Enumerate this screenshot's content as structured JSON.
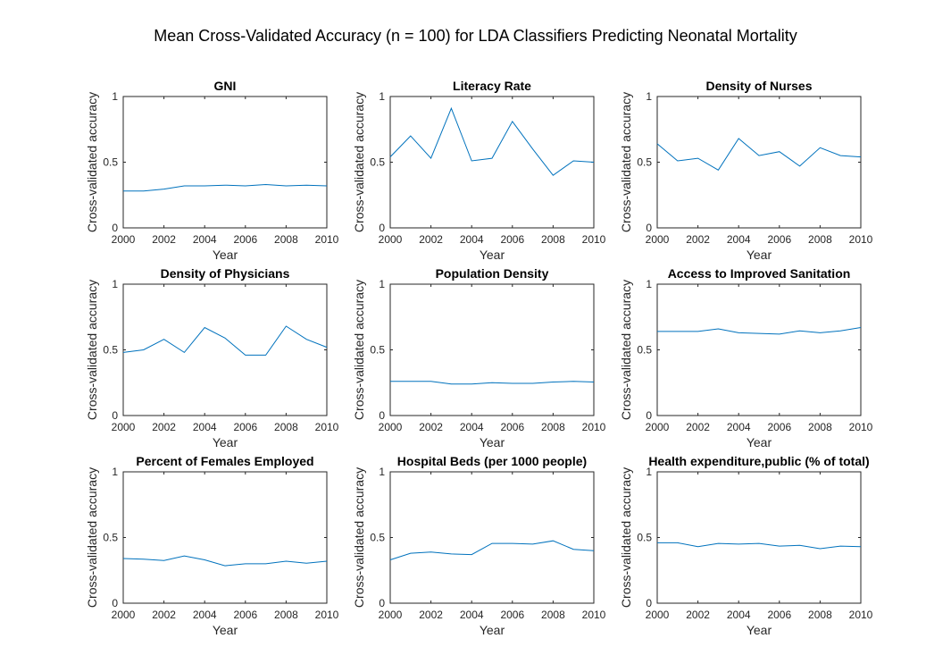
{
  "figure_title": "Mean Cross-Validated Accuracy (n = 100) for LDA Classifiers Predicting Neonatal Mortality",
  "colors": {
    "line": "#0072BD",
    "axis": "#262626",
    "background": "#ffffff"
  },
  "chart_data": [
    {
      "type": "line",
      "title": "GNI",
      "xlabel": "Year",
      "ylabel": "Cross-validated accuracy",
      "xlim": [
        2000,
        2010
      ],
      "ylim": [
        0,
        1
      ],
      "xticks": [
        "2000",
        "2002",
        "2004",
        "2006",
        "2008",
        "2010"
      ],
      "yticks": [
        "0",
        "0.5",
        "1"
      ],
      "x": [
        2000,
        2001,
        2002,
        2003,
        2004,
        2005,
        2006,
        2007,
        2008,
        2009,
        2010
      ],
      "y": [
        0.28,
        0.28,
        0.295,
        0.32,
        0.32,
        0.325,
        0.32,
        0.33,
        0.32,
        0.325,
        0.32
      ]
    },
    {
      "type": "line",
      "title": "Literacy Rate",
      "xlabel": "Year",
      "ylabel": "Cross-validated accuracy",
      "xlim": [
        2000,
        2010
      ],
      "ylim": [
        0,
        1
      ],
      "xticks": [
        "2000",
        "2002",
        "2004",
        "2006",
        "2008",
        "2010"
      ],
      "yticks": [
        "0",
        "0.5",
        "1"
      ],
      "x": [
        2000,
        2001,
        2002,
        2003,
        2004,
        2005,
        2006,
        2007,
        2008,
        2009,
        2010
      ],
      "y": [
        0.54,
        0.7,
        0.53,
        0.91,
        0.51,
        0.53,
        0.81,
        0.6,
        0.4,
        0.51,
        0.5
      ]
    },
    {
      "type": "line",
      "title": "Density of Nurses",
      "xlabel": "Year",
      "ylabel": "Cross-validated accuracy",
      "xlim": [
        2000,
        2010
      ],
      "ylim": [
        0,
        1
      ],
      "xticks": [
        "2000",
        "2002",
        "2004",
        "2006",
        "2008",
        "2010"
      ],
      "yticks": [
        "0",
        "0.5",
        "1"
      ],
      "x": [
        2000,
        2001,
        2002,
        2003,
        2004,
        2005,
        2006,
        2007,
        2008,
        2009,
        2010
      ],
      "y": [
        0.64,
        0.51,
        0.53,
        0.44,
        0.68,
        0.55,
        0.58,
        0.47,
        0.61,
        0.55,
        0.54
      ]
    },
    {
      "type": "line",
      "title": "Density of Physicians",
      "xlabel": "Year",
      "ylabel": "Cross-validated accuracy",
      "xlim": [
        2000,
        2010
      ],
      "ylim": [
        0,
        1
      ],
      "xticks": [
        "2000",
        "2002",
        "2004",
        "2006",
        "2008",
        "2010"
      ],
      "yticks": [
        "0",
        "0.5",
        "1"
      ],
      "x": [
        2000,
        2001,
        2002,
        2003,
        2004,
        2005,
        2006,
        2007,
        2008,
        2009,
        2010
      ],
      "y": [
        0.48,
        0.5,
        0.58,
        0.48,
        0.67,
        0.59,
        0.46,
        0.46,
        0.68,
        0.58,
        0.52
      ]
    },
    {
      "type": "line",
      "title": "Population Density",
      "xlabel": "Year",
      "ylabel": "Cross-validated accuracy",
      "xlim": [
        2000,
        2010
      ],
      "ylim": [
        0,
        1
      ],
      "xticks": [
        "2000",
        "2002",
        "2004",
        "2006",
        "2008",
        "2010"
      ],
      "yticks": [
        "0",
        "0.5",
        "1"
      ],
      "x": [
        2000,
        2001,
        2002,
        2003,
        2004,
        2005,
        2006,
        2007,
        2008,
        2009,
        2010
      ],
      "y": [
        0.26,
        0.26,
        0.26,
        0.24,
        0.24,
        0.25,
        0.245,
        0.245,
        0.255,
        0.26,
        0.255
      ]
    },
    {
      "type": "line",
      "title": "Access to Improved Sanitation",
      "xlabel": "Year",
      "ylabel": "Cross-validated accuracy",
      "xlim": [
        2000,
        2010
      ],
      "ylim": [
        0,
        1
      ],
      "xticks": [
        "2000",
        "2002",
        "2004",
        "2006",
        "2008",
        "2010"
      ],
      "yticks": [
        "0",
        "0.5",
        "1"
      ],
      "x": [
        2000,
        2001,
        2002,
        2003,
        2004,
        2005,
        2006,
        2007,
        2008,
        2009,
        2010
      ],
      "y": [
        0.64,
        0.64,
        0.64,
        0.66,
        0.63,
        0.625,
        0.62,
        0.645,
        0.63,
        0.645,
        0.67
      ]
    },
    {
      "type": "line",
      "title": "Percent of Females Employed",
      "xlabel": "Year",
      "ylabel": "Cross-validated accuracy",
      "xlim": [
        2000,
        2010
      ],
      "ylim": [
        0,
        1
      ],
      "xticks": [
        "2000",
        "2002",
        "2004",
        "2006",
        "2008",
        "2010"
      ],
      "yticks": [
        "0",
        "0.5",
        "1"
      ],
      "x": [
        2000,
        2001,
        2002,
        2003,
        2004,
        2005,
        2006,
        2007,
        2008,
        2009,
        2010
      ],
      "y": [
        0.34,
        0.335,
        0.325,
        0.36,
        0.33,
        0.285,
        0.3,
        0.3,
        0.32,
        0.305,
        0.32
      ]
    },
    {
      "type": "line",
      "title": "Hospital Beds (per 1000 people)",
      "xlabel": "Year",
      "ylabel": "Cross-validated accuracy",
      "xlim": [
        2000,
        2010
      ],
      "ylim": [
        0,
        1
      ],
      "xticks": [
        "2000",
        "2002",
        "2004",
        "2006",
        "2008",
        "2010"
      ],
      "yticks": [
        "0",
        "0.5",
        "1"
      ],
      "x": [
        2000,
        2001,
        2002,
        2003,
        2004,
        2005,
        2006,
        2007,
        2008,
        2009,
        2010
      ],
      "y": [
        0.33,
        0.38,
        0.39,
        0.375,
        0.37,
        0.455,
        0.455,
        0.45,
        0.475,
        0.41,
        0.4
      ]
    },
    {
      "type": "line",
      "title": "Health expenditure,public (% of total)",
      "xlabel": "Year",
      "ylabel": "Cross-validated accuracy",
      "xlim": [
        2000,
        2010
      ],
      "ylim": [
        0,
        1
      ],
      "xticks": [
        "2000",
        "2002",
        "2004",
        "2006",
        "2008",
        "2010"
      ],
      "yticks": [
        "0",
        "0.5",
        "1"
      ],
      "x": [
        2000,
        2001,
        2002,
        2003,
        2004,
        2005,
        2006,
        2007,
        2008,
        2009,
        2010
      ],
      "y": [
        0.46,
        0.46,
        0.43,
        0.455,
        0.45,
        0.455,
        0.435,
        0.44,
        0.415,
        0.435,
        0.43
      ]
    }
  ]
}
